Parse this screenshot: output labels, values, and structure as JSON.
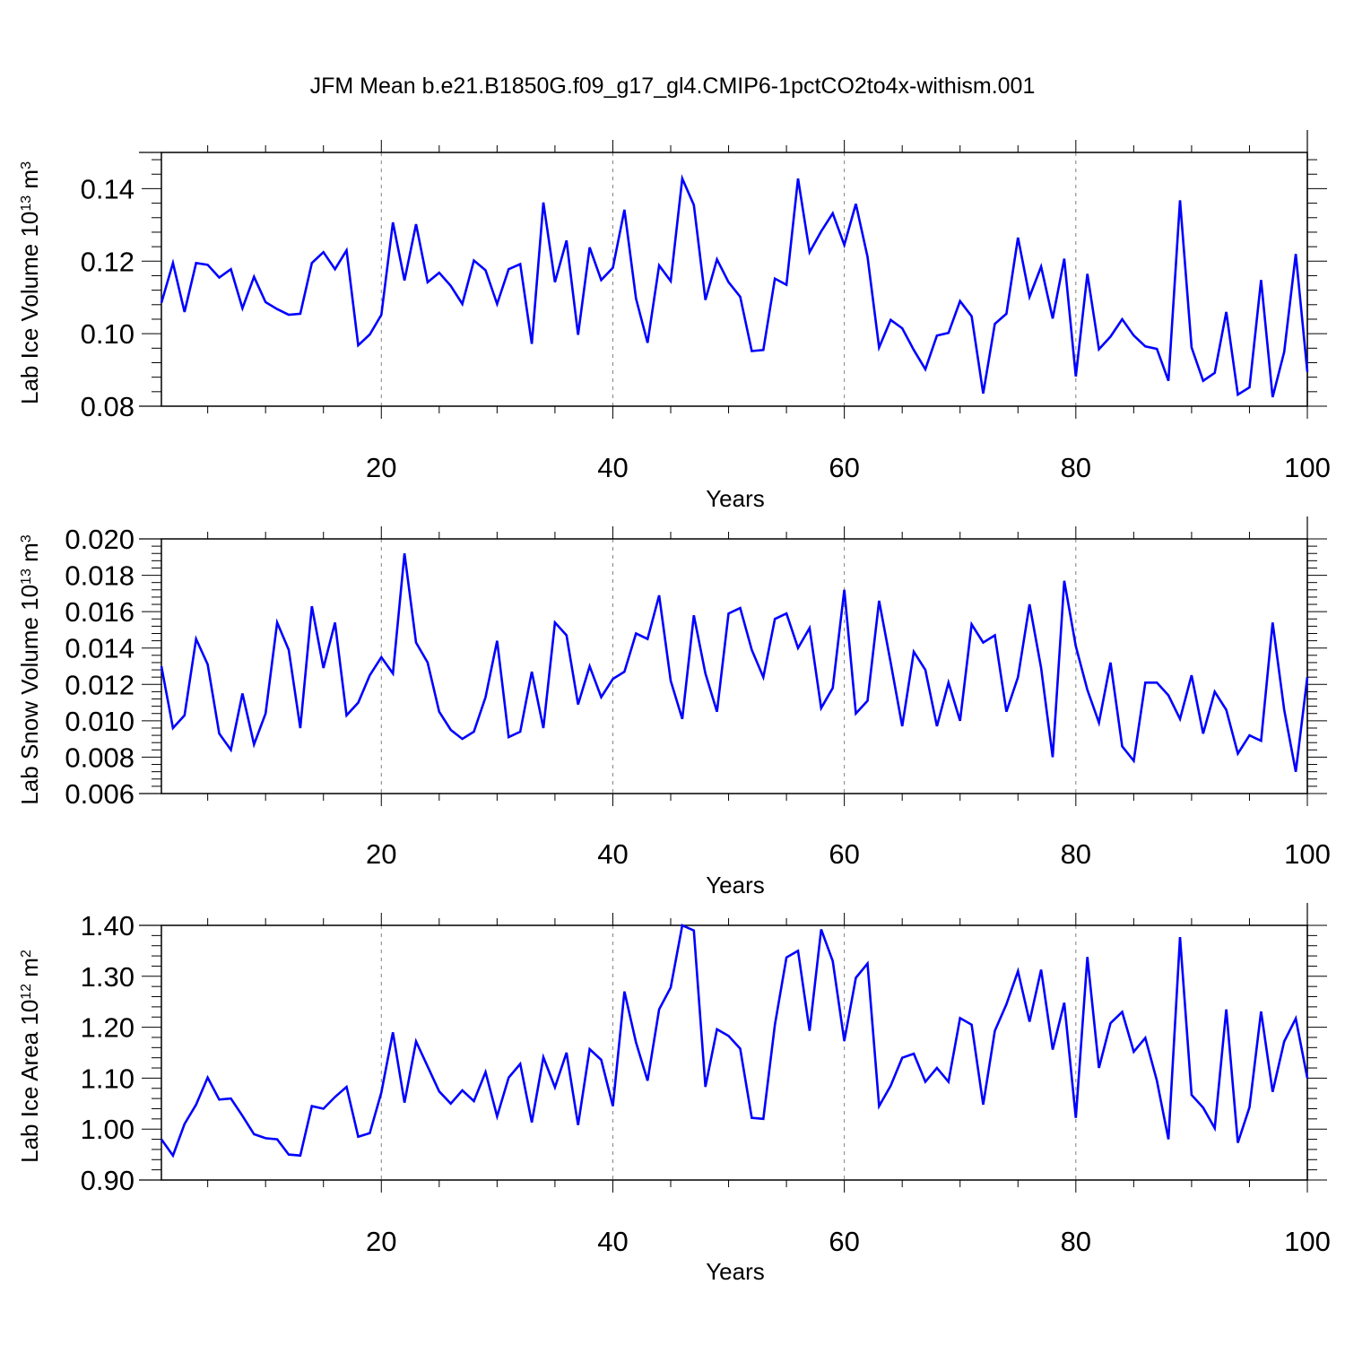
{
  "title": "JFM Mean b.e21.B1850G.f09_g17_gl4.CMIP6-1pctCO2to4x-withism.001",
  "colors": {
    "line": "#0000ff",
    "frame": "#000000",
    "grid": "#808080"
  },
  "chart_data": [
    {
      "type": "line",
      "name": "ice-volume",
      "ylabel": "Lab Ice Volume 10",
      "ylabel_exp": "13",
      "ylabel_unit": " m",
      "ylabel_unit_exp": "3",
      "xlabel": "Years",
      "xlim": [
        1,
        100
      ],
      "ylim": [
        0.08,
        0.15
      ],
      "xticks": [
        20,
        40,
        60,
        80,
        100
      ],
      "xtick_labels": [
        "20",
        "40",
        "60",
        "80",
        "100"
      ],
      "yticks": [
        0.08,
        0.1,
        0.12,
        0.14
      ],
      "ytick_labels": [
        "0.08",
        "0.10",
        "0.12",
        "0.14"
      ],
      "grid_x": [
        20,
        40,
        60,
        80
      ],
      "values": [
        0.1085,
        0.1195,
        0.106,
        0.1195,
        0.119,
        0.1155,
        0.1178,
        0.107,
        0.1157,
        0.1087,
        0.1068,
        0.1052,
        0.1055,
        0.1195,
        0.1225,
        0.1178,
        0.123,
        0.0968,
        0.0998,
        0.1052,
        0.1307,
        0.1147,
        0.1302,
        0.1142,
        0.1168,
        0.1132,
        0.1082,
        0.1202,
        0.1175,
        0.1082,
        0.1178,
        0.1192,
        0.0972,
        0.1362,
        0.1142,
        0.1257,
        0.0997,
        0.1238,
        0.1148,
        0.1182,
        0.1342,
        0.1097,
        0.0975,
        0.1188,
        0.1145,
        0.1428,
        0.1355,
        0.1093,
        0.1205,
        0.1142,
        0.1102,
        0.0952,
        0.0955,
        0.1152,
        0.1135,
        0.1428,
        0.1225,
        0.1282,
        0.1332,
        0.1245,
        0.1358,
        0.1212,
        0.0962,
        0.1038,
        0.1015,
        0.0955,
        0.0902,
        0.0995,
        0.1002,
        0.109,
        0.1048,
        0.0835,
        0.1027,
        0.1055,
        0.1265,
        0.1102,
        0.1185,
        0.1042,
        0.1207,
        0.0882,
        0.1165,
        0.0957,
        0.0992,
        0.104,
        0.0995,
        0.0965,
        0.0958,
        0.087,
        0.1368,
        0.0962,
        0.087,
        0.0892,
        0.106,
        0.0832,
        0.0852,
        0.1148,
        0.0825,
        0.095,
        0.122,
        0.0895
      ]
    },
    {
      "type": "line",
      "name": "snow-volume",
      "ylabel": "Lab Snow Volume 10",
      "ylabel_exp": "13",
      "ylabel_unit": " m",
      "ylabel_unit_exp": "3",
      "xlabel": "Years",
      "xlim": [
        1,
        100
      ],
      "ylim": [
        0.006,
        0.02
      ],
      "xticks": [
        20,
        40,
        60,
        80,
        100
      ],
      "xtick_labels": [
        "20",
        "40",
        "60",
        "80",
        "100"
      ],
      "yticks": [
        0.006,
        0.008,
        0.01,
        0.012,
        0.014,
        0.016,
        0.018,
        0.02
      ],
      "ytick_labels": [
        "0.006",
        "0.008",
        "0.010",
        "0.012",
        "0.014",
        "0.016",
        "0.018",
        "0.020"
      ],
      "grid_x": [
        20,
        40,
        60,
        80
      ],
      "values": [
        0.013,
        0.0096,
        0.0103,
        0.0145,
        0.0131,
        0.0093,
        0.0084,
        0.0115,
        0.0087,
        0.0104,
        0.0154,
        0.0139,
        0.0096,
        0.0163,
        0.0129,
        0.0154,
        0.0103,
        0.011,
        0.0125,
        0.0135,
        0.0126,
        0.0192,
        0.0143,
        0.0132,
        0.0105,
        0.0095,
        0.009,
        0.0094,
        0.0113,
        0.0144,
        0.0091,
        0.0094,
        0.0127,
        0.0096,
        0.0154,
        0.0147,
        0.0109,
        0.013,
        0.0113,
        0.0123,
        0.0127,
        0.0148,
        0.0145,
        0.0169,
        0.0122,
        0.0101,
        0.0158,
        0.0126,
        0.0105,
        0.0159,
        0.0162,
        0.0139,
        0.0124,
        0.0156,
        0.0159,
        0.014,
        0.0151,
        0.0107,
        0.0118,
        0.0172,
        0.0104,
        0.0111,
        0.0166,
        0.0132,
        0.0097,
        0.0138,
        0.0128,
        0.0097,
        0.0121,
        0.01,
        0.0153,
        0.0143,
        0.0147,
        0.0105,
        0.0124,
        0.0164,
        0.0129,
        0.008,
        0.0177,
        0.0141,
        0.0117,
        0.0099,
        0.0132,
        0.0086,
        0.0078,
        0.0121,
        0.0121,
        0.0114,
        0.0101,
        0.0125,
        0.0093,
        0.0116,
        0.0106,
        0.0082,
        0.0092,
        0.0089,
        0.0154,
        0.0106,
        0.0072,
        0.0124
      ]
    },
    {
      "type": "line",
      "name": "ice-area",
      "ylabel": "Lab Ice Area 10",
      "ylabel_exp": "12",
      "ylabel_unit": " m",
      "ylabel_unit_exp": "2",
      "xlabel": "Years",
      "xlim": [
        1,
        100
      ],
      "ylim": [
        0.9,
        1.4
      ],
      "xticks": [
        20,
        40,
        60,
        80,
        100
      ],
      "xtick_labels": [
        "20",
        "40",
        "60",
        "80",
        "100"
      ],
      "yticks": [
        0.9,
        1.0,
        1.1,
        1.2,
        1.3,
        1.4
      ],
      "ytick_labels": [
        "0.90",
        "1.00",
        "1.10",
        "1.20",
        "1.30",
        "1.40"
      ],
      "grid_x": [
        20,
        40,
        60,
        80
      ],
      "values": [
        0.98,
        0.948,
        1.01,
        1.048,
        1.101,
        1.058,
        1.06,
        1.026,
        0.99,
        0.982,
        0.98,
        0.95,
        0.948,
        1.045,
        1.04,
        1.063,
        1.083,
        0.985,
        0.992,
        1.072,
        1.19,
        1.052,
        1.172,
        1.123,
        1.074,
        1.05,
        1.076,
        1.055,
        1.112,
        1.025,
        1.101,
        1.128,
        1.013,
        1.141,
        1.082,
        1.15,
        1.008,
        1.157,
        1.136,
        1.045,
        1.27,
        1.17,
        1.095,
        1.235,
        1.278,
        1.4,
        1.39,
        1.083,
        1.196,
        1.183,
        1.158,
        1.022,
        1.02,
        1.205,
        1.337,
        1.35,
        1.193,
        1.392,
        1.33,
        1.173,
        1.297,
        1.325,
        1.045,
        1.085,
        1.14,
        1.148,
        1.093,
        1.12,
        1.093,
        1.218,
        1.205,
        1.048,
        1.193,
        1.245,
        1.31,
        1.211,
        1.313,
        1.156,
        1.248,
        1.022,
        1.338,
        1.12,
        1.208,
        1.23,
        1.152,
        1.179,
        1.095,
        0.98,
        1.377,
        1.067,
        1.042,
        1.002,
        1.235,
        0.973,
        1.043,
        1.231,
        1.073,
        1.172,
        1.217,
        1.1
      ]
    }
  ]
}
